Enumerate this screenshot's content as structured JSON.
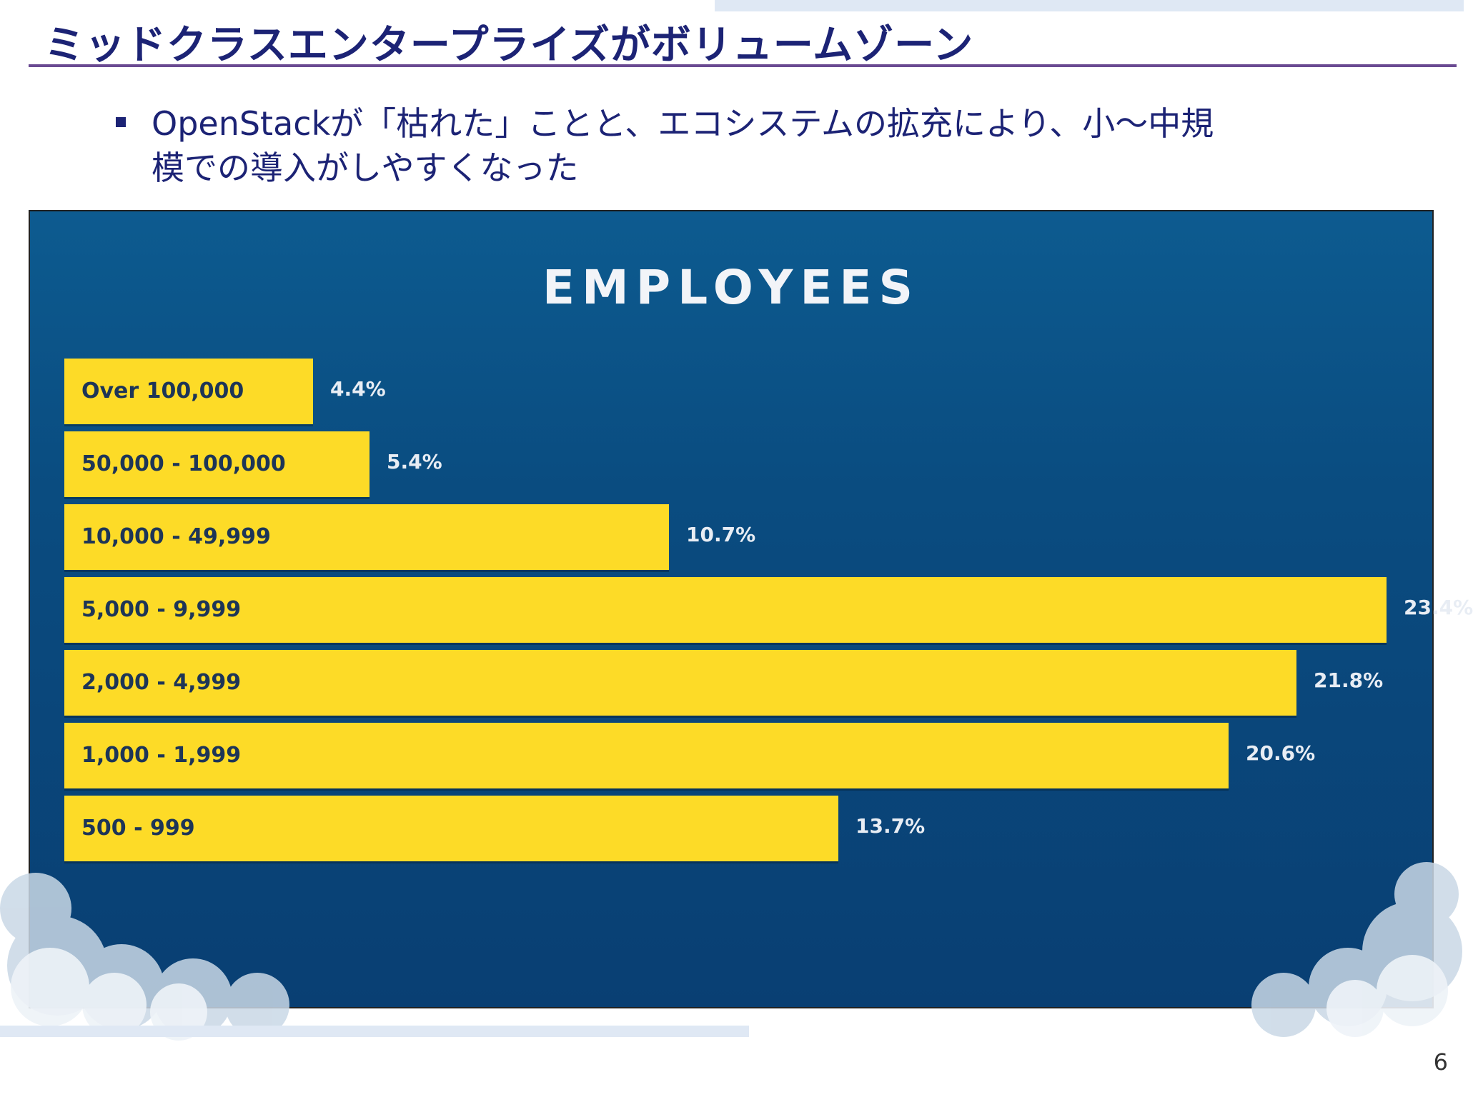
{
  "slide": {
    "title": "ミッドクラスエンタープライズがボリュームゾーン",
    "bullet_line1": "OpenStackが「枯れた」ことと、エコシステムの拡充により、小～中規",
    "bullet_line2": "模での導入がしやすくなった",
    "page_number": "6"
  },
  "colors": {
    "title": "#1c2375",
    "bar": "#fddb27",
    "chart_bg": "#0a4c80"
  },
  "chart_data": {
    "type": "bar",
    "orientation": "horizontal",
    "title": "EMPLOYEES",
    "categories": [
      "Over 100,000",
      "50,000 - 100,000",
      "10,000 - 49,999",
      "5,000 - 9,999",
      "2,000 - 4,999",
      "1,000 -  1,999",
      "500 - 999"
    ],
    "values": [
      4.4,
      5.4,
      10.7,
      23.4,
      21.8,
      20.6,
      13.7
    ],
    "value_labels": [
      "4.4%",
      "5.4%",
      "10.7%",
      "23.4%",
      "21.8%",
      "20.6%",
      "13.7%"
    ],
    "unit": "%",
    "xlim": [
      0,
      23.4
    ],
    "xlabel": "",
    "ylabel": ""
  }
}
